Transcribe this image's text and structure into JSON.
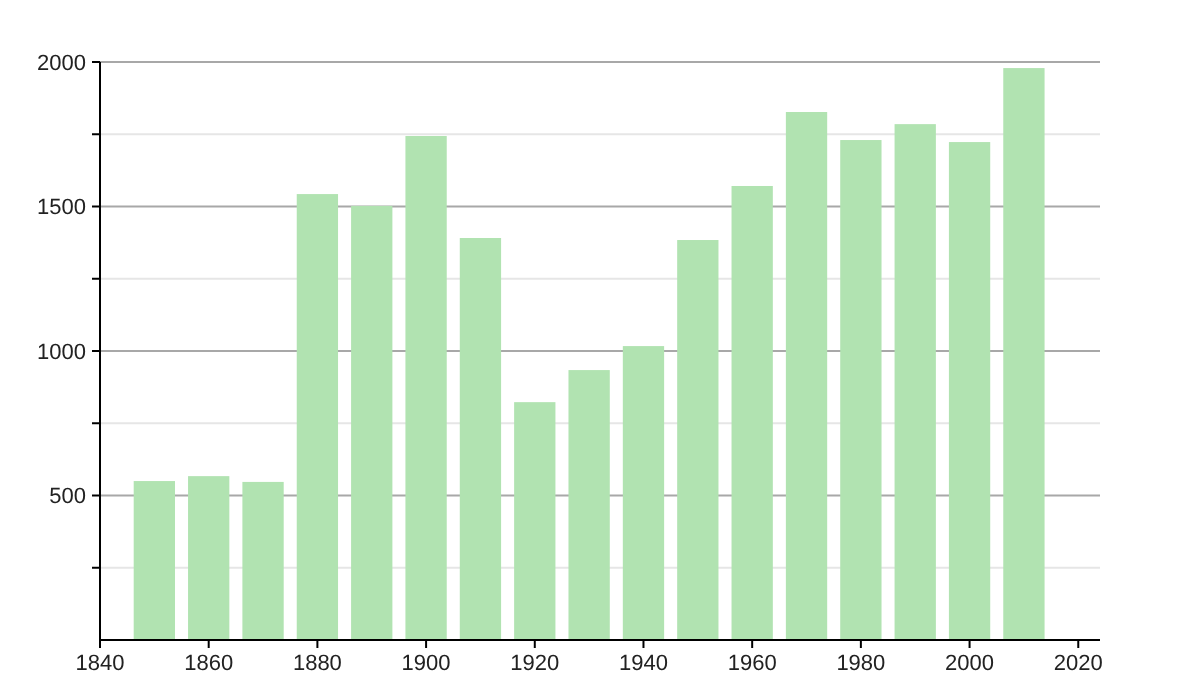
{
  "chart_data": {
    "type": "bar",
    "x": [
      1850,
      1860,
      1870,
      1880,
      1890,
      1900,
      1910,
      1920,
      1930,
      1940,
      1950,
      1960,
      1970,
      1980,
      1990,
      2000,
      2010
    ],
    "values": [
      550,
      567,
      547,
      1543,
      1502,
      1744,
      1391,
      823,
      934,
      1017,
      1384,
      1571,
      1827,
      1730,
      1785,
      1723,
      1979
    ],
    "color": "#b1e3b1",
    "xlim": [
      1840,
      2024
    ],
    "xticks": [
      1840,
      1860,
      1880,
      1900,
      1920,
      1940,
      1960,
      1980,
      2000,
      2020
    ],
    "ylim": [
      0,
      2000
    ],
    "yticks": [
      {
        "value": 250,
        "label": null
      },
      500,
      {
        "value": 750,
        "label": null
      },
      1000,
      {
        "value": 1250,
        "label": null
      },
      1500,
      {
        "value": 1750,
        "label": null
      },
      2000
    ],
    "grid": "y"
  }
}
